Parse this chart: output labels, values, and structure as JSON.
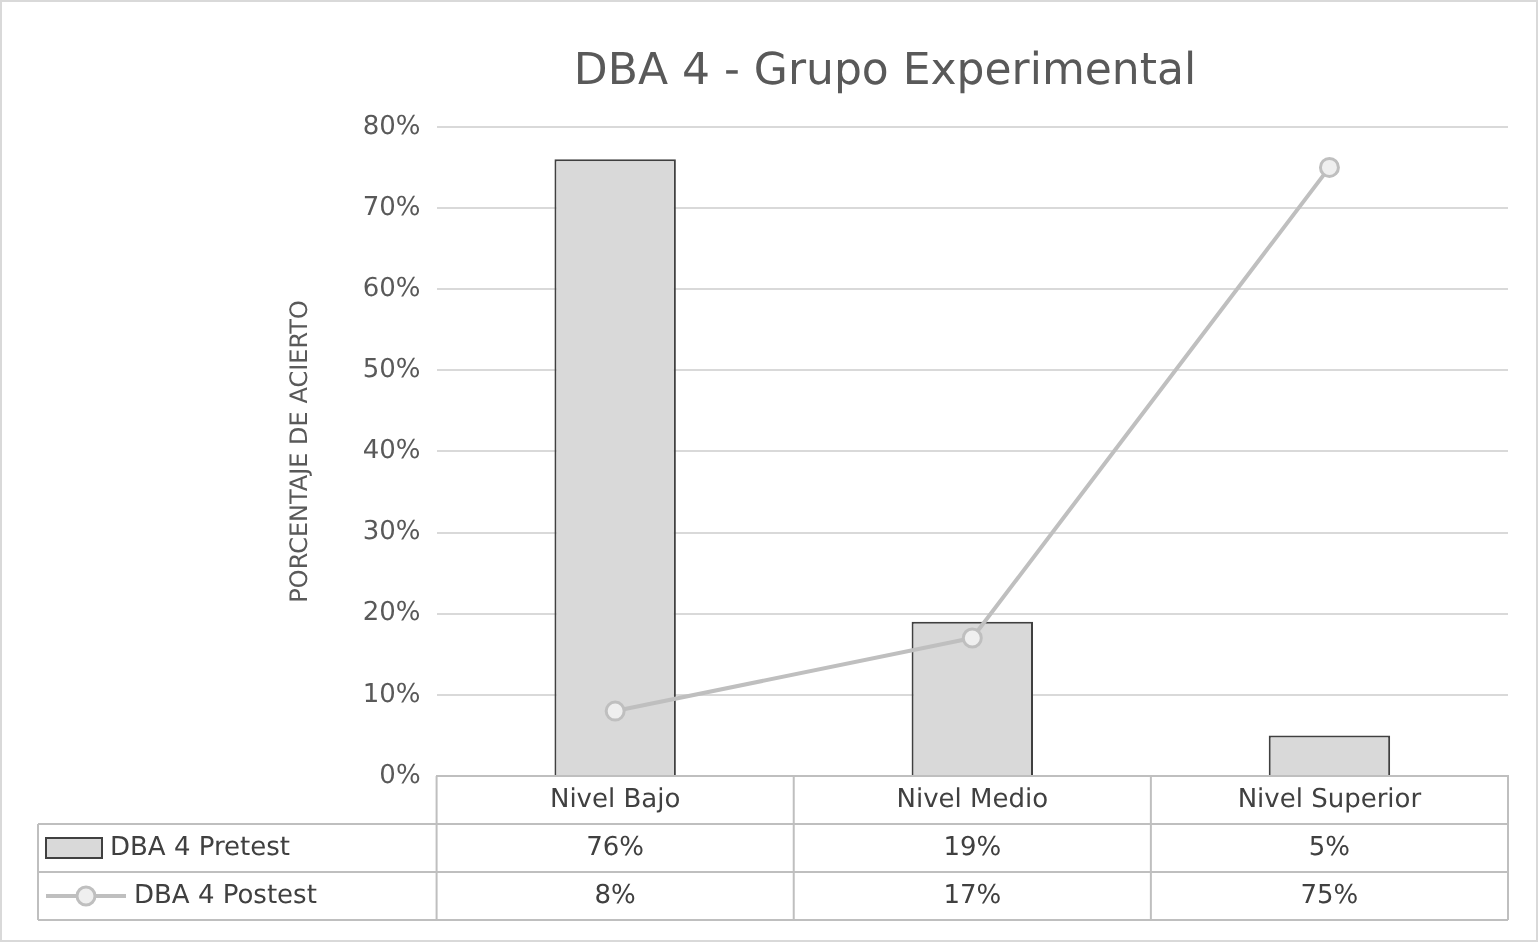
{
  "chart_data": {
    "type": "bar",
    "title": "DBA 4 - Grupo Experimental",
    "ylabel": "PORCENTAJE DE ACIERTO",
    "categories": [
      "Nivel Bajo",
      "Nivel Medio",
      "Nivel Superior"
    ],
    "series": [
      {
        "name": "DBA 4 Pretest",
        "color": "#d9d9d9",
        "values": [
          76,
          19,
          5
        ],
        "value_labels": [
          "76%",
          "19%",
          "5%"
        ]
      },
      {
        "name": "DBA 4 Postest",
        "type": "line",
        "color": "#bfbfbf",
        "values": [
          8,
          17,
          75
        ],
        "value_labels": [
          "8%",
          "17%",
          "75%"
        ]
      }
    ],
    "ylim": [
      0,
      80
    ],
    "yticks": [
      {
        "value": 0,
        "label": "0%"
      },
      {
        "value": 10,
        "label": "10%"
      },
      {
        "value": 20,
        "label": "20%"
      },
      {
        "value": 30,
        "label": "30%"
      },
      {
        "value": 40,
        "label": "40%"
      },
      {
        "value": 50,
        "label": "50%"
      },
      {
        "value": 60,
        "label": "60%"
      },
      {
        "value": 70,
        "label": "70%"
      },
      {
        "value": 80,
        "label": "80%"
      }
    ],
    "grid": "y",
    "legend": "bottom",
    "marker": "circle",
    "line_style": "solid"
  }
}
